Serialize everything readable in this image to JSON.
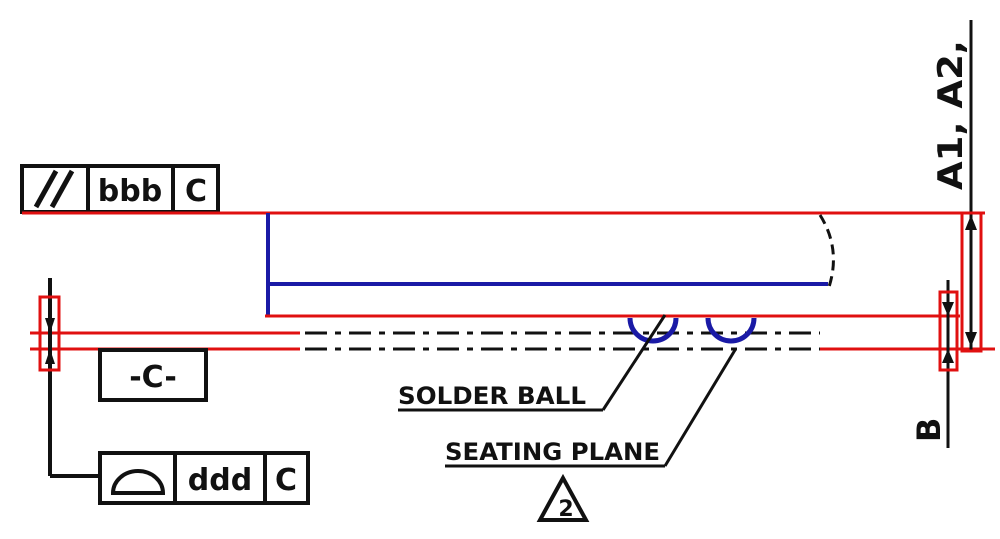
{
  "parallelism_frame": {
    "symbol": "//",
    "tolerance": "bbb",
    "datum": "C"
  },
  "datum_frame": {
    "label": "-C-"
  },
  "profile_frame": {
    "tolerance": "ddd",
    "datum": "C"
  },
  "callouts": {
    "solder_ball": "SOLDER BALL",
    "seating_plane": "SEATING PLANE"
  },
  "note_flag": {
    "number": "2"
  },
  "dimensions": {
    "a_label": "A1, A2,",
    "b_label": "B"
  },
  "colors": {
    "outline": "#1a1aa6",
    "highlight": "#e01010",
    "ink": "#111111"
  }
}
